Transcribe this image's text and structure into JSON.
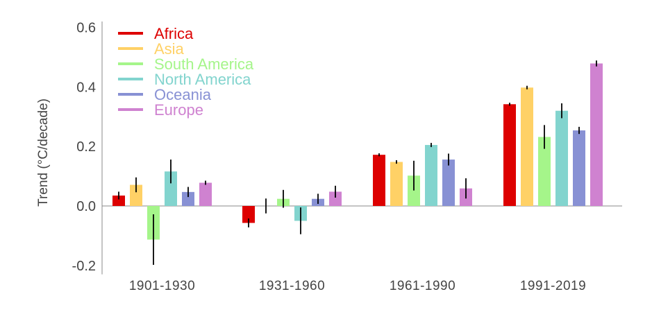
{
  "chart_data": {
    "type": "bar",
    "title": "",
    "xlabel": "",
    "ylabel": "Trend (°C/decade)",
    "ylim": [
      -0.23,
      0.62
    ],
    "yticks": [
      -0.2,
      0.0,
      0.2,
      0.4,
      0.6
    ],
    "ytick_labels": [
      "-0.2",
      "0.0",
      "0.2",
      "0.4",
      "0.6"
    ],
    "grid": false,
    "legend_position": "top-left",
    "categories": [
      "1901-1930",
      "1931-1960",
      "1961-1990",
      "1991-2019"
    ],
    "series": [
      {
        "name": "Africa",
        "color": "#dd0000",
        "values": [
          0.035,
          -0.057,
          0.172,
          0.342
        ],
        "errors": [
          0.013,
          0.015,
          0.005,
          0.005
        ]
      },
      {
        "name": "Asia",
        "color": "#ffd166",
        "values": [
          0.071,
          0.0,
          0.148,
          0.398
        ],
        "errors": [
          0.025,
          0.025,
          0.006,
          0.006
        ]
      },
      {
        "name": "South America",
        "color": "#a5f58a",
        "values": [
          -0.113,
          0.024,
          0.102,
          0.232
        ],
        "errors": [
          0.085,
          0.03,
          0.05,
          0.04
        ]
      },
      {
        "name": "North America",
        "color": "#82d4ce",
        "values": [
          0.116,
          -0.05,
          0.205,
          0.32
        ],
        "errors": [
          0.04,
          0.045,
          0.007,
          0.025
        ]
      },
      {
        "name": "Oceania",
        "color": "#8891d4",
        "values": [
          0.047,
          0.024,
          0.156,
          0.254
        ],
        "errors": [
          0.017,
          0.017,
          0.02,
          0.012
        ]
      },
      {
        "name": "Europe",
        "color": "#cf82d0",
        "values": [
          0.078,
          0.048,
          0.059,
          0.479
        ],
        "errors": [
          0.007,
          0.02,
          0.034,
          0.01
        ]
      }
    ]
  }
}
